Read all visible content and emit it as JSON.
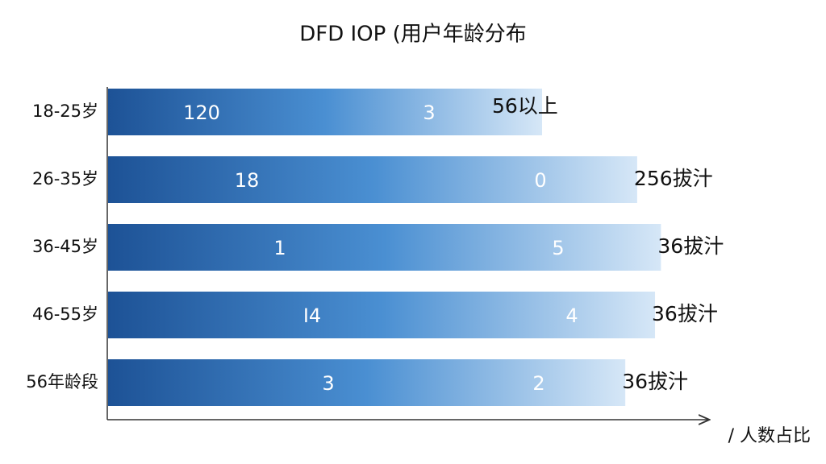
{
  "chart_data": {
    "type": "bar",
    "orientation": "horizontal",
    "title": "DFD IOP (用户年龄分布",
    "x_axis_label": "/ 人数占比",
    "categories": [
      "18-25岁",
      "26-35岁",
      "36-45岁",
      "46-55岁",
      "56年龄段"
    ],
    "values": [
      73,
      89,
      93,
      92,
      87
    ],
    "inner_labels": [
      [
        "120",
        "3"
      ],
      [
        "18",
        "0"
      ],
      [
        "1",
        "5"
      ],
      [
        "I4",
        "4"
      ],
      [
        "3",
        "2"
      ]
    ],
    "end_labels": [
      "56以上",
      "256拔汁",
      "36拔汁",
      "36拔汁",
      "36拔汁"
    ],
    "color": "#2a66ad",
    "xlim": [
      0,
      100
    ]
  }
}
